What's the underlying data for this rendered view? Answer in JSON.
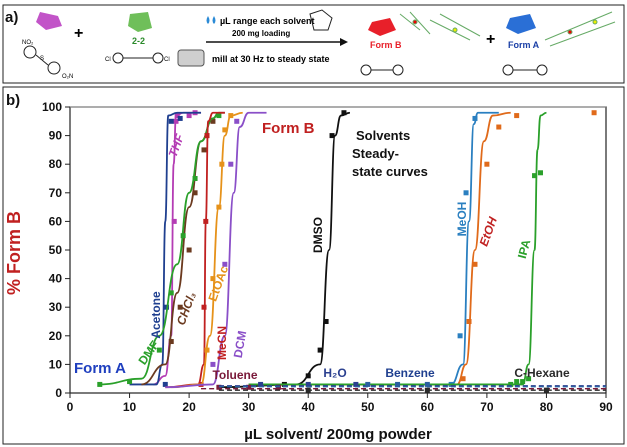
{
  "panel_a": {
    "label": "a)",
    "plus": "+",
    "lag_label": "2-2",
    "arrow_top": "µL range each solvent",
    "arrow_mid": "200 mg loading",
    "arrow_bottom": "mill at 30 Hz to steady state",
    "form_b_label": "Form B",
    "form_a_label": "Form A",
    "no2_label": "NO₂",
    "o2n_label": "O₂N",
    "s_label": "S",
    "cl_label": "Cl",
    "colors": {
      "form_b": "#e8202a",
      "form_a": "#2a6fd6",
      "disulfide": "#c254c8",
      "lag": "#6fbf5a"
    }
  },
  "chart_data": {
    "type": "line",
    "panel_label": "b)",
    "xlabel": "µL solvent/ 200mg powder",
    "ylabel": "% Form B",
    "xlim": [
      0,
      90
    ],
    "ylim": [
      0,
      100
    ],
    "xticks": [
      0,
      10,
      20,
      30,
      40,
      50,
      60,
      70,
      80,
      90
    ],
    "yticks": [
      0,
      10,
      20,
      30,
      40,
      50,
      60,
      70,
      80,
      90,
      100
    ],
    "grid": false,
    "annotations": {
      "form_a": "Form A",
      "form_b": "Form B",
      "title_lines": [
        "Solvents",
        "Steady-",
        "state curves"
      ]
    },
    "series": [
      {
        "name": "THF",
        "color": "#b43cb4",
        "x": [
          14,
          16,
          17,
          17.4,
          17.8,
          19,
          22
        ],
        "y": [
          3,
          6,
          20,
          80,
          97,
          98,
          98
        ],
        "px": [
          17.5,
          17.8,
          18,
          20,
          21
        ],
        "py": [
          60,
          95,
          97,
          97,
          98
        ]
      },
      {
        "name": "Acetone",
        "color": "#1f3f8f",
        "x": [
          10,
          14.5,
          15.5,
          16,
          16.5,
          18,
          22
        ],
        "y": [
          3,
          3,
          10,
          60,
          97,
          98,
          98
        ],
        "px": [
          16,
          16.2,
          17,
          18.5
        ],
        "py": [
          3,
          30,
          95,
          96
        ]
      },
      {
        "name": "CHCl3",
        "color": "#6b3a1f",
        "x": [
          12,
          16,
          18,
          20,
          22,
          24,
          25,
          26
        ],
        "y": [
          3,
          10,
          35,
          65,
          88,
          96,
          98,
          98
        ],
        "px": [
          17,
          18.5,
          20,
          21,
          22.5,
          24
        ],
        "py": [
          18,
          30,
          50,
          70,
          85,
          95
        ]
      },
      {
        "name": "DMF",
        "color": "#2aa02a",
        "x": [
          5,
          12,
          15,
          18,
          20,
          22,
          24,
          25
        ],
        "y": [
          3,
          5,
          20,
          45,
          70,
          88,
          96,
          98
        ],
        "px": [
          5,
          10,
          15,
          17,
          19,
          21,
          23,
          25
        ],
        "py": [
          3,
          4,
          15,
          35,
          55,
          75,
          90,
          97
        ]
      },
      {
        "name": "MeCN",
        "color": "#c02020",
        "x": [
          16,
          21.5,
          22.5,
          22.8,
          23.2,
          24,
          26
        ],
        "y": [
          2,
          3,
          10,
          60,
          95,
          98,
          98
        ],
        "px": [
          22,
          22.5,
          22.8,
          23
        ],
        "py": [
          3,
          30,
          60,
          90
        ]
      },
      {
        "name": "EtOAc",
        "color": "#e6921a",
        "x": [
          17,
          22,
          23.5,
          25,
          26,
          27,
          29
        ],
        "y": [
          2,
          3,
          20,
          65,
          90,
          97,
          98
        ],
        "px": [
          23,
          24,
          25,
          25.5,
          26,
          27
        ],
        "py": [
          15,
          40,
          65,
          80,
          92,
          97
        ]
      },
      {
        "name": "DCM",
        "color": "#8a4fc8",
        "x": [
          16,
          24,
          26,
          27.5,
          28.5,
          30,
          33
        ],
        "y": [
          2,
          3,
          20,
          70,
          93,
          98,
          98
        ],
        "px": [
          24,
          26,
          27,
          28
        ],
        "py": [
          10,
          45,
          80,
          95
        ]
      },
      {
        "name": "DMSO",
        "color": "#111111",
        "x": [
          25,
          38,
          42,
          43.5,
          44.5,
          45.5,
          47
        ],
        "y": [
          2,
          3,
          10,
          50,
          90,
          97,
          98
        ],
        "px": [
          36,
          40,
          42,
          43,
          44,
          46
        ],
        "py": [
          3,
          6,
          15,
          25,
          90,
          98
        ]
      },
      {
        "name": "MeOH",
        "color": "#2a7fc0",
        "x": [
          30,
          64,
          66,
          67,
          67.8,
          68.5,
          72
        ],
        "y": [
          3,
          3,
          10,
          60,
          94,
          98,
          98
        ],
        "px": [
          64,
          65.5,
          66.5,
          68
        ],
        "py": [
          3,
          20,
          70,
          96
        ]
      },
      {
        "name": "EtOH",
        "color": "#e06a1a",
        "x": [
          30,
          65,
          66.5,
          68,
          69.5,
          71,
          74
        ],
        "y": [
          3,
          3,
          10,
          50,
          88,
          97,
          98
        ],
        "px": [
          66,
          67,
          68,
          70,
          72,
          75,
          88
        ],
        "py": [
          5,
          25,
          45,
          80,
          93,
          97,
          98
        ]
      },
      {
        "name": "IPA",
        "color": "#2aa02a",
        "x": [
          30,
          76,
          77,
          78,
          78.5,
          79,
          80
        ],
        "y": [
          3,
          3,
          10,
          50,
          85,
          97,
          98
        ],
        "px": [
          74,
          75,
          76,
          77,
          78,
          79
        ],
        "py": [
          3,
          4,
          4,
          5,
          76,
          77
        ]
      },
      {
        "name": "Toluene",
        "color": "#7a1a3a",
        "x": [
          22,
          90
        ],
        "y": [
          1.5,
          1.5
        ],
        "px": [
          25,
          30,
          35
        ],
        "py": [
          2,
          2,
          2
        ]
      },
      {
        "name": "H₂O",
        "color": "#2a3f8f",
        "x": [
          25,
          90
        ],
        "y": [
          2.5,
          2.5
        ],
        "px": [
          32,
          40,
          48
        ],
        "py": [
          3,
          3,
          3
        ]
      },
      {
        "name": "Benzene",
        "color": "#2a5fa0",
        "x": [
          25,
          90
        ],
        "y": [
          2.2,
          2.2
        ],
        "px": [
          50,
          55,
          60
        ],
        "py": [
          3,
          3,
          3
        ]
      },
      {
        "name": "C-Hexane",
        "color": "#2a2a2a",
        "x": [
          25,
          90
        ],
        "y": [
          1,
          1
        ],
        "px": [
          40,
          60,
          80
        ],
        "py": [
          1,
          1,
          1
        ]
      }
    ],
    "series_labels": [
      {
        "text": "THF",
        "color": "#b43cb4"
      },
      {
        "text": "Acetone",
        "color": "#1f3f8f"
      },
      {
        "text": "CHCl₃",
        "color": "#6b3a1f"
      },
      {
        "text": "DMF",
        "color": "#2aa02a"
      },
      {
        "text": "MeCN",
        "color": "#c02020"
      },
      {
        "text": "EtOAc",
        "color": "#e6921a"
      },
      {
        "text": "DCM",
        "color": "#8a4fc8"
      },
      {
        "text": "DMSO",
        "color": "#111111"
      },
      {
        "text": "MeOH",
        "color": "#2a7fc0"
      },
      {
        "text": "EtOH",
        "color": "#c02020"
      },
      {
        "text": "IPA",
        "color": "#2aa02a"
      },
      {
        "text": "Toluene",
        "color": "#7a1a3a"
      },
      {
        "text": "H₂O",
        "color": "#2a3f8f"
      },
      {
        "text": "Benzene",
        "color": "#1f3f8f"
      },
      {
        "text": "C-Hexane",
        "color": "#2a2a2a"
      }
    ]
  }
}
